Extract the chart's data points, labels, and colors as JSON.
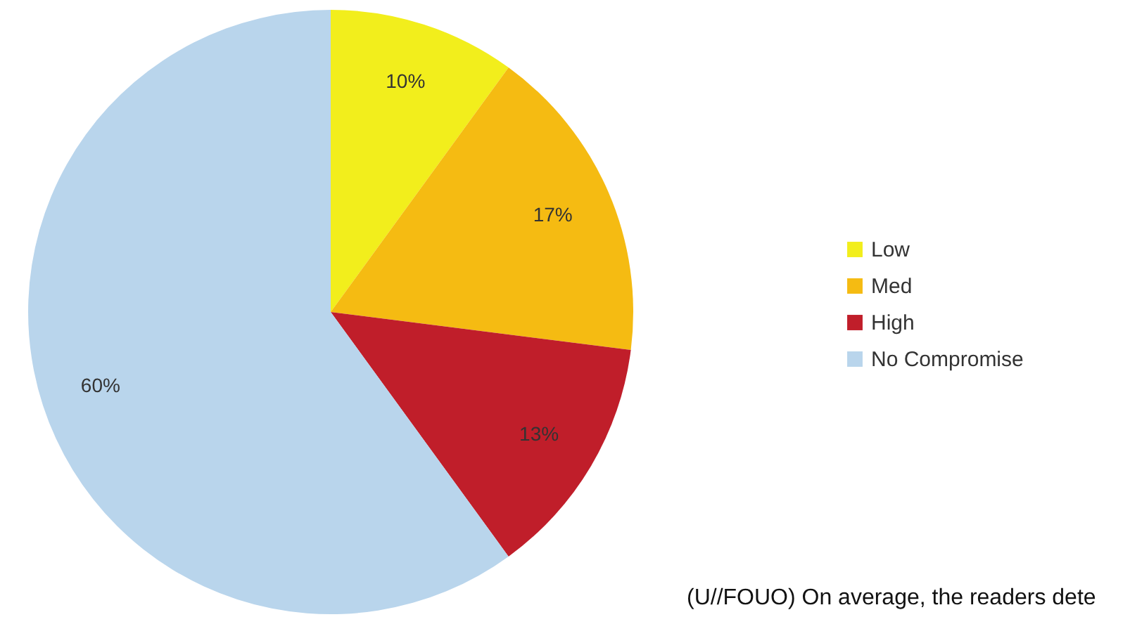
{
  "chart_data": {
    "type": "pie",
    "categories": [
      "Low",
      "Med",
      "High",
      "No Compromise"
    ],
    "values": [
      10,
      17,
      13,
      60
    ],
    "colors": [
      "#f2ee1c",
      "#f5bb12",
      "#c01e2a",
      "#b9d5ec"
    ],
    "value_labels": [
      "10%",
      "17%",
      "13%",
      "60%"
    ],
    "legend": "right",
    "annotations": [
      "(U//FOUO) On average, the readers dete"
    ]
  }
}
